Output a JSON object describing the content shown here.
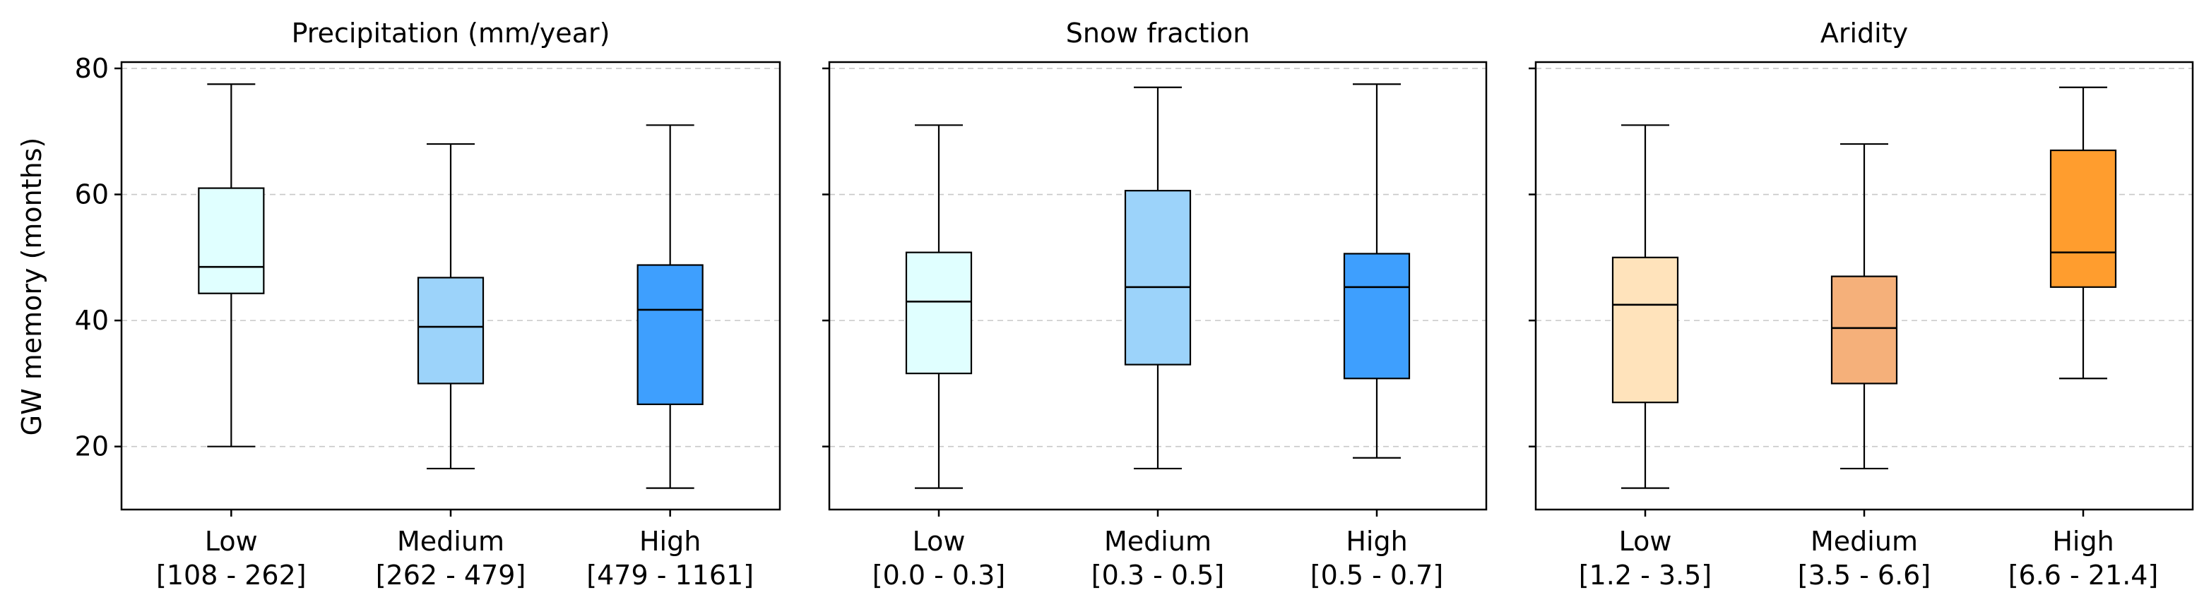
{
  "chart_data": {
    "type": "box",
    "ylabel": "GW memory (months)",
    "ylim": [
      10,
      81
    ],
    "yticks": [
      20,
      40,
      60,
      80
    ],
    "grid": "horizontal dashed",
    "panels": [
      {
        "title": "Precipitation (mm/year)",
        "categories": [
          {
            "label": "Low",
            "range": "[108 - 262]",
            "color": "#e0ffff",
            "whisker_low": 20,
            "q1": 44.3,
            "median": 48.5,
            "q3": 61,
            "whisker_high": 77.5
          },
          {
            "label": "Medium",
            "range": "[262 - 479]",
            "color": "#9cd3fa",
            "whisker_low": 16.5,
            "q1": 30,
            "median": 39,
            "q3": 46.8,
            "whisker_high": 68
          },
          {
            "label": "High",
            "range": "[479 - 1161]",
            "color": "#3e9ffe",
            "whisker_low": 13.4,
            "q1": 26.7,
            "median": 41.7,
            "q3": 48.8,
            "whisker_high": 71
          }
        ]
      },
      {
        "title": "Snow fraction",
        "categories": [
          {
            "label": "Low",
            "range": "[0.0 - 0.3]",
            "color": "#e0ffff",
            "whisker_low": 13.4,
            "q1": 31.6,
            "median": 43,
            "q3": 50.8,
            "whisker_high": 71
          },
          {
            "label": "Medium",
            "range": "[0.3 - 0.5]",
            "color": "#9cd3fa",
            "whisker_low": 16.5,
            "q1": 33,
            "median": 45.3,
            "q3": 60.6,
            "whisker_high": 77
          },
          {
            "label": "High",
            "range": "[0.5 - 0.7]",
            "color": "#3e9ffe",
            "whisker_low": 18.2,
            "q1": 30.8,
            "median": 45.3,
            "q3": 50.6,
            "whisker_high": 77.5
          }
        ]
      },
      {
        "title": "Aridity",
        "categories": [
          {
            "label": "Low",
            "range": "[1.2 - 3.5]",
            "color": "#ffe3bb",
            "whisker_low": 13.4,
            "q1": 27,
            "median": 42.5,
            "q3": 50,
            "whisker_high": 71
          },
          {
            "label": "Medium",
            "range": "[3.5 - 6.6]",
            "color": "#f5b07a",
            "whisker_low": 16.5,
            "q1": 30,
            "median": 38.8,
            "q3": 47,
            "whisker_high": 68
          },
          {
            "label": "High",
            "range": "[6.6 - 21.4]",
            "color": "#ff9d2e",
            "whisker_low": 30.8,
            "q1": 45.3,
            "median": 50.8,
            "q3": 67,
            "whisker_high": 77
          }
        ]
      }
    ]
  }
}
